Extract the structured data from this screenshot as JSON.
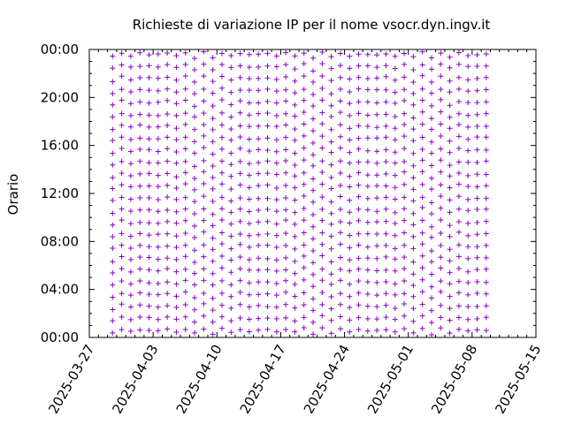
{
  "chart_data": {
    "type": "scatter",
    "title": "Richieste di variazione IP per il nome vsocr.dyn.ingv.it",
    "ylabel": "Orario",
    "xlabel": "",
    "x_ticks": [
      "2025-03-27",
      "2025-04-03",
      "2025-04-10",
      "2025-04-17",
      "2025-04-24",
      "2025-05-01",
      "2025-05-08",
      "2025-05-15"
    ],
    "y_ticks": [
      "00:00",
      "04:00",
      "08:00",
      "12:00",
      "16:00",
      "20:00",
      "00:00"
    ],
    "x_range": [
      "2025-03-27",
      "2025-05-15"
    ],
    "y_range_hours": [
      0,
      24
    ],
    "grid": false,
    "marker": "+",
    "series_color": "#8b00c8",
    "pattern": {
      "description": "approximately one update per hour throughout the observed period",
      "first_day": "2025-03-29",
      "last_day": "2025-05-09",
      "offsets_note": "hourly request times drift within each hour from day to day"
    }
  }
}
